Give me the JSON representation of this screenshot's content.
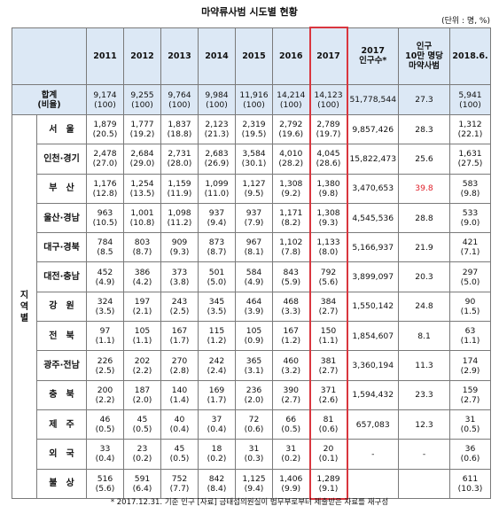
{
  "title": "마약류사범 시도별 현황",
  "unit": "(단위 : 명, %)",
  "header": {
    "years": [
      "2011",
      "2012",
      "2013",
      "2014",
      "2015",
      "2016",
      "2017"
    ],
    "pop_label_1": "2017",
    "pop_label_2": "인구수*",
    "rate_label_1": "인구",
    "rate_label_2": "10만 명당",
    "rate_label_3": "마약사범",
    "last_label": "2018.6."
  },
  "total": {
    "label_1": "합계",
    "label_2": "(비율)",
    "values": [
      "9,174",
      "9,255",
      "9,764",
      "9,984",
      "11,916",
      "14,214",
      "14,123"
    ],
    "pcts": [
      "(100)",
      "(100)",
      "(100)",
      "(100)",
      "(100)",
      "(100)",
      "(100)"
    ],
    "population": "51,778,544",
    "rate": "27.3",
    "last_value": "5,941",
    "last_pct": "(100)"
  },
  "side_label": "지\n역\n별",
  "regions": [
    {
      "name": "서　울",
      "values": [
        "1,879",
        "1,777",
        "1,837",
        "2,123",
        "2,319",
        "2,792",
        "2,789"
      ],
      "pcts": [
        "(20.5)",
        "(19.2)",
        "(18.8)",
        "(21.3)",
        "(19.5)",
        "(19.6)",
        "(19.7)"
      ],
      "population": "9,857,426",
      "rate": "28.3",
      "last_value": "1,312",
      "last_pct": "(22.1)"
    },
    {
      "name": "인천·경기",
      "values": [
        "2,478",
        "2,684",
        "2,731",
        "2,683",
        "3,584",
        "4,010",
        "4,045"
      ],
      "pcts": [
        "(27.0)",
        "(29.0)",
        "(28.0)",
        "(26.9)",
        "(30.1)",
        "(28.2)",
        "(28.6)"
      ],
      "population": "15,822,473",
      "rate": "25.6",
      "last_value": "1,631",
      "last_pct": "(27.5)"
    },
    {
      "name": "부　산",
      "values": [
        "1,176",
        "1,254",
        "1,159",
        "1,099",
        "1,127",
        "1,308",
        "1,380"
      ],
      "pcts": [
        "(12.8)",
        "(13.5)",
        "(11.9)",
        "(11.0)",
        "(9.5)",
        "(9.2)",
        "(9.8)"
      ],
      "population": "3,470,653",
      "rate": "39.8",
      "last_value": "583",
      "last_pct": "(9.8)",
      "highlight": true
    },
    {
      "name": "울산·경남",
      "values": [
        "963",
        "1,001",
        "1,098",
        "937",
        "937",
        "1,171",
        "1,308"
      ],
      "pcts": [
        "(10.5)",
        "(10.8)",
        "(11.2)",
        "(9.4)",
        "(7.9)",
        "(8.2)",
        "(9.3)"
      ],
      "population": "4,545,536",
      "rate": "28.8",
      "last_value": "533",
      "last_pct": "(9.0)"
    },
    {
      "name": "대구·경북",
      "values": [
        "784",
        "803",
        "909",
        "873",
        "967",
        "1,102",
        "1,133"
      ],
      "pcts": [
        "(8.5",
        "(8.7)",
        "(9.3)",
        "(8.7)",
        "(8.1)",
        "(7.8)",
        "(8.0)"
      ],
      "population": "5,166,937",
      "rate": "21.9",
      "last_value": "421",
      "last_pct": "(7.1)"
    },
    {
      "name": "대전·충남",
      "values": [
        "452",
        "386",
        "373",
        "501",
        "584",
        "843",
        "792"
      ],
      "pcts": [
        "(4.9)",
        "(4.2)",
        "(3.8)",
        "(5.0)",
        "(4.9)",
        "(5.9)",
        "(5.6)"
      ],
      "population": "3,899,097",
      "rate": "20.3",
      "last_value": "297",
      "last_pct": "(5.0)"
    },
    {
      "name": "강　원",
      "values": [
        "324",
        "197",
        "243",
        "345",
        "464",
        "468",
        "384"
      ],
      "pcts": [
        "(3.5)",
        "(2.1)",
        "(2.5)",
        "(3.5)",
        "(3.9)",
        "(3.3)",
        "(2.7)"
      ],
      "population": "1,550,142",
      "rate": "24.8",
      "last_value": "90",
      "last_pct": "(1.5)"
    },
    {
      "name": "전　북",
      "values": [
        "97",
        "105",
        "167",
        "115",
        "105",
        "167",
        "150"
      ],
      "pcts": [
        "(1.1)",
        "(1.1)",
        "(1.7)",
        "(1.2)",
        "(0.9)",
        "(1.2)",
        "(1.1)"
      ],
      "population": "1,854,607",
      "rate": "8.1",
      "last_value": "63",
      "last_pct": "(1.1)"
    },
    {
      "name": "광주·전남",
      "values": [
        "226",
        "202",
        "270",
        "242",
        "365",
        "460",
        "381"
      ],
      "pcts": [
        "(2.5)",
        "(2.2)",
        "(2.8)",
        "(2.4)",
        "(3.1)",
        "(3.2)",
        "(2.7)"
      ],
      "population": "3,360,194",
      "rate": "11.3",
      "last_value": "174",
      "last_pct": "(2.9)"
    },
    {
      "name": "충　북",
      "values": [
        "200",
        "187",
        "140",
        "169",
        "236",
        "390",
        "371"
      ],
      "pcts": [
        "(2.2)",
        "(2.0)",
        "(1.4)",
        "(1.7)",
        "(2.0)",
        "(2.7)",
        "(2.6)"
      ],
      "population": "1,594,432",
      "rate": "23.3",
      "last_value": "159",
      "last_pct": "(2.7)"
    },
    {
      "name": "제　주",
      "values": [
        "46",
        "45",
        "40",
        "37",
        "72",
        "66",
        "81"
      ],
      "pcts": [
        "(0.5)",
        "(0.5)",
        "(0.4)",
        "(0.4)",
        "(0.6)",
        "(0.5)",
        "(0.6)"
      ],
      "population": "657,083",
      "rate": "12.3",
      "last_value": "31",
      "last_pct": "(0.5)"
    },
    {
      "name": "외　국",
      "values": [
        "33",
        "23",
        "45",
        "18",
        "31",
        "31",
        "20"
      ],
      "pcts": [
        "(0.4)",
        "(0.2)",
        "(0.5)",
        "(0.2)",
        "(0.3)",
        "(0.2)",
        "(0.1)"
      ],
      "population": "-",
      "rate": "-",
      "last_value": "36",
      "last_pct": "(0.6)"
    },
    {
      "name": "불　상",
      "values": [
        "516",
        "591",
        "752",
        "842",
        "1,125",
        "1,406",
        "1,289"
      ],
      "pcts": [
        "(5.6)",
        "(6.4)",
        "(7.7)",
        "(8.4)",
        "(9.4)",
        "(9.9)",
        "(9.1)"
      ],
      "population": "",
      "rate": "",
      "last_value": "611",
      "last_pct": "(10.3)"
    }
  ],
  "footnote": "* 2017.12.31. 기준 인구 [자료] 금태섭의원실이 법무부로부터 제출받은 자료를 재구성"
}
